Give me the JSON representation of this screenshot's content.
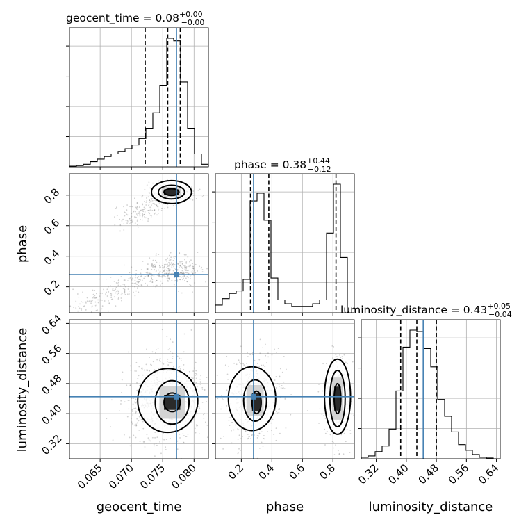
{
  "chart_data": {
    "type": "corner",
    "parameters": [
      "geocent_time",
      "phase",
      "luminosity_distance"
    ],
    "colors": {
      "truth": "#4682b4",
      "hist": "#000000",
      "quantile": "#000000"
    },
    "grid": true,
    "titles": {
      "geocent_time": {
        "prefix": "geocent_time = ",
        "median": "0.08",
        "plus": "+0.00",
        "minus": "−0.00"
      },
      "phase": {
        "prefix": "phase = ",
        "median": "0.38",
        "plus": "+0.44",
        "minus": "−0.12"
      },
      "luminosity_distance": {
        "prefix": "luminosity_distance = ",
        "median": "0.43",
        "plus": "+0.05",
        "minus": "−0.04"
      }
    },
    "truths": {
      "geocent_time": 0.0772,
      "phase": 0.28,
      "luminosity_distance": 0.445
    },
    "ranges": {
      "geocent_time": [
        0.0601,
        0.0823
      ],
      "phase": [
        0.03,
        0.94
      ],
      "luminosity_distance": [
        0.28,
        0.65
      ]
    },
    "ticks": {
      "geocent_time": {
        "values": [
          0.065,
          0.07,
          0.075,
          0.08
        ],
        "labels": [
          "0.065",
          "0.070",
          "0.075",
          "0.080"
        ]
      },
      "phase": {
        "values": [
          0.2,
          0.4,
          0.6,
          0.8
        ],
        "labels": [
          "0.2",
          "0.4",
          "0.6",
          "0.8"
        ]
      },
      "luminosity_distance": {
        "values": [
          0.32,
          0.4,
          0.48,
          0.56,
          0.64
        ],
        "labels": [
          "0.32",
          "0.40",
          "0.48",
          "0.56",
          "0.64"
        ]
      }
    },
    "quantiles": {
      "geocent_time": [
        0.0722,
        0.0758,
        0.0778
      ],
      "phase": [
        0.26,
        0.38,
        0.82
      ],
      "luminosity_distance": [
        0.385,
        0.428,
        0.48
      ]
    },
    "histograms": {
      "geocent_time": {
        "bins": [
          0.0601,
          0.06121,
          0.06232,
          0.06343,
          0.06454,
          0.06565,
          0.06676,
          0.06787,
          0.06898,
          0.07009,
          0.0712,
          0.07231,
          0.07342,
          0.07453,
          0.07564,
          0.07675,
          0.07786,
          0.07897,
          0.08008,
          0.08119,
          0.0823
        ],
        "counts": [
          0.5,
          1,
          2,
          4,
          6,
          8,
          10,
          12,
          14,
          17,
          22,
          30,
          42,
          63,
          100,
          98,
          66,
          30,
          10,
          2
        ]
      },
      "phase": {
        "bins": [
          0.03,
          0.0755,
          0.121,
          0.1665,
          0.212,
          0.2575,
          0.303,
          0.3485,
          0.394,
          0.4395,
          0.485,
          0.5305,
          0.576,
          0.6215,
          0.667,
          0.7125,
          0.758,
          0.8035,
          0.849,
          0.8945,
          0.94
        ],
        "counts": [
          6,
          11,
          15,
          17,
          26,
          87,
          93,
          72,
          27,
          10,
          7,
          5,
          5,
          5,
          7,
          10,
          62,
          100,
          43,
          0
        ]
      },
      "luminosity_distance": {
        "bins": [
          0.28,
          0.2985,
          0.317,
          0.3355,
          0.354,
          0.3725,
          0.391,
          0.4095,
          0.428,
          0.4465,
          0.465,
          0.4835,
          0.502,
          0.5205,
          0.539,
          0.5575,
          0.576,
          0.5945,
          0.613,
          0.6315,
          0.65
        ],
        "counts": [
          1,
          2,
          5,
          9,
          21,
          48,
          79,
          91,
          90,
          78,
          65,
          42,
          30,
          19,
          10,
          6,
          3,
          1,
          0.5,
          0
        ]
      }
    },
    "contours": {
      "phase_vs_geocent_time": [
        {
          "level": "inner",
          "cx": 0.0764,
          "cy": 0.82,
          "rx": 0.0012,
          "ry": 0.022
        },
        {
          "level": "mid",
          "cx": 0.0764,
          "cy": 0.82,
          "rx": 0.0021,
          "ry": 0.045
        },
        {
          "level": "outer",
          "cx": 0.0764,
          "cy": 0.82,
          "rx": 0.0032,
          "ry": 0.075
        }
      ],
      "luminosity_distance_vs_geocent_time": [
        {
          "level": "inner",
          "cx": 0.0765,
          "cy": 0.43,
          "rx": 0.0013,
          "ry": 0.025
        },
        {
          "level": "mid",
          "cx": 0.0765,
          "cy": 0.43,
          "rx": 0.0027,
          "ry": 0.058
        },
        {
          "level": "outer",
          "cx": 0.0758,
          "cy": 0.435,
          "rx": 0.0048,
          "ry": 0.085
        }
      ],
      "luminosity_distance_vs_phase": [
        {
          "level": "inner",
          "cx": 0.3,
          "cy": 0.43,
          "rx": 0.03,
          "ry": 0.03
        },
        {
          "level": "mid",
          "cx": 0.29,
          "cy": 0.435,
          "rx": 0.075,
          "ry": 0.055
        },
        {
          "level": "outer",
          "cx": 0.27,
          "cy": 0.44,
          "rx": 0.155,
          "ry": 0.085
        },
        {
          "level": "inner",
          "cx": 0.83,
          "cy": 0.44,
          "rx": 0.022,
          "ry": 0.04
        },
        {
          "level": "mid",
          "cx": 0.83,
          "cy": 0.44,
          "rx": 0.05,
          "ry": 0.075
        },
        {
          "level": "outer",
          "cx": 0.83,
          "cy": 0.445,
          "rx": 0.085,
          "ry": 0.1
        }
      ]
    }
  }
}
